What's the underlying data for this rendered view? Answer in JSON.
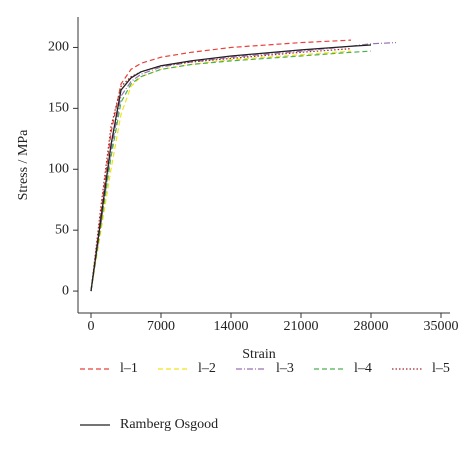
{
  "chart_data": {
    "type": "line",
    "x_label": "Strain",
    "y_label": "Stress / MPa",
    "x": [
      0,
      1000,
      2000,
      3000,
      4000,
      5000,
      7000,
      10000,
      14000,
      21000,
      26000,
      28000,
      30500
    ],
    "xlim": [
      -1300,
      35900
    ],
    "ylim": [
      -18,
      225
    ],
    "xticks": [
      0,
      7000,
      14000,
      21000,
      28000,
      35000
    ],
    "yticks": [
      0,
      50,
      100,
      150,
      200
    ],
    "series": [
      {
        "name": "l–1",
        "color": "#e8413a",
        "line_style": "dashed",
        "values": [
          0,
          65,
          130,
          170,
          182,
          187,
          192,
          196,
          200,
          204,
          206,
          null,
          null
        ]
      },
      {
        "name": "l–2",
        "color": "#f2e21b",
        "line_style": "dashed",
        "values": [
          0,
          50,
          100,
          145,
          168,
          176,
          182,
          186,
          190,
          194,
          197,
          null,
          null
        ]
      },
      {
        "name": "l–3",
        "color": "#9a6fb0",
        "line_style": "dashdot",
        "values": [
          0,
          55,
          115,
          160,
          172,
          178,
          184,
          188,
          192,
          197,
          201,
          203,
          204
        ]
      },
      {
        "name": "l–4",
        "color": "#4caf50",
        "line_style": "dashed",
        "values": [
          0,
          55,
          110,
          155,
          170,
          176,
          182,
          186,
          189,
          193,
          196,
          197,
          null
        ]
      },
      {
        "name": "l–5",
        "color": "#a0282a",
        "line_style": "dotted",
        "values": [
          0,
          70,
          135,
          168,
          176,
          180,
          185,
          188,
          191,
          196,
          199,
          null,
          null
        ]
      },
      {
        "name": "Ramberg Osgood",
        "color": "#222222",
        "line_style": "solid",
        "values": [
          0,
          60,
          120,
          165,
          175,
          180,
          185,
          189,
          193,
          198,
          201,
          202,
          null
        ]
      }
    ]
  }
}
